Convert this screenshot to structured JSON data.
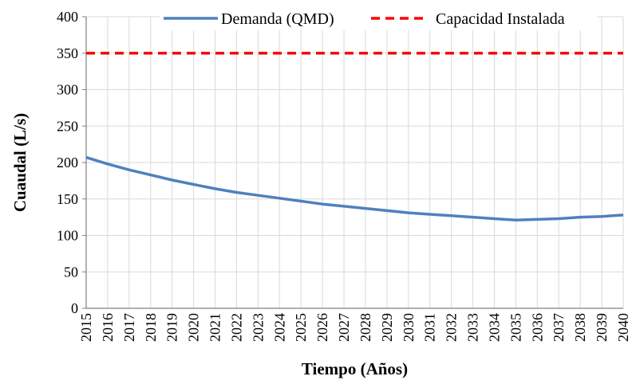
{
  "chart_data": {
    "type": "line",
    "title": "",
    "xlabel": "Tiempo (Años)",
    "ylabel": "Cuaudal (L/s)",
    "x": [
      2015,
      2016,
      2017,
      2018,
      2019,
      2020,
      2021,
      2022,
      2023,
      2024,
      2025,
      2026,
      2027,
      2028,
      2029,
      2030,
      2031,
      2032,
      2033,
      2034,
      2035,
      2036,
      2037,
      2038,
      2039,
      2040
    ],
    "xlim": [
      2015,
      2040
    ],
    "ylim": [
      0,
      400
    ],
    "yticks": [
      0,
      50,
      100,
      150,
      200,
      250,
      300,
      350,
      400
    ],
    "grid": true,
    "legend_position": "top",
    "series": [
      {
        "name": "Demanda (QMD)",
        "color": "#4f81bd",
        "style": "solid",
        "values": [
          207,
          198,
          190,
          183,
          176,
          170,
          164,
          159,
          155,
          151,
          147,
          143,
          140,
          137,
          134,
          131,
          129,
          127,
          125,
          123,
          121,
          122,
          123,
          125,
          126,
          128
        ]
      },
      {
        "name": "Capacidad Instalada",
        "color": "#ff0000",
        "style": "dashed",
        "values": [
          350,
          350,
          350,
          350,
          350,
          350,
          350,
          350,
          350,
          350,
          350,
          350,
          350,
          350,
          350,
          350,
          350,
          350,
          350,
          350,
          350,
          350,
          350,
          350,
          350,
          350
        ]
      }
    ]
  }
}
